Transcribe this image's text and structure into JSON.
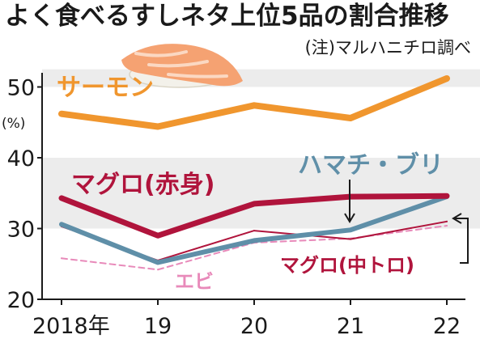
{
  "chart_data": {
    "type": "line",
    "title": "よく食べるすしネタ上位5品の割合推移",
    "source_note": "(注)マルハニチロ調べ",
    "unit_label": "(%)",
    "x": [
      "2018年",
      "19",
      "20",
      "21",
      "22"
    ],
    "ylim": [
      20,
      52
    ],
    "yticks": [
      20,
      30,
      40,
      50
    ],
    "grid": "alternating bands",
    "colors": {
      "salmon": "#f0962e",
      "tuna_red": "#b0143c",
      "hamachi": "#5f8fa8",
      "ebi": "#e88aba",
      "tuna_medium": "#b0143c",
      "band": "#ececec"
    },
    "series": [
      {
        "key": "salmon",
        "name": "サーモン",
        "values": [
          46.2,
          44.4,
          47.4,
          45.6,
          51.2
        ]
      },
      {
        "key": "tuna_red",
        "name": "マグロ(赤身)",
        "values": [
          34.3,
          29.0,
          33.5,
          34.5,
          34.6
        ]
      },
      {
        "key": "hamachi",
        "name": "ハマチ・ブリ",
        "values": [
          30.6,
          25.2,
          28.3,
          29.8,
          34.5
        ]
      },
      {
        "key": "tuna_medium",
        "name": "マグロ(中トロ)",
        "values": [
          30.3,
          25.5,
          29.7,
          28.5,
          31.0
        ]
      },
      {
        "key": "ebi",
        "name": "エビ",
        "values": [
          25.8,
          24.2,
          28.0,
          28.6,
          30.4
        ]
      }
    ]
  }
}
